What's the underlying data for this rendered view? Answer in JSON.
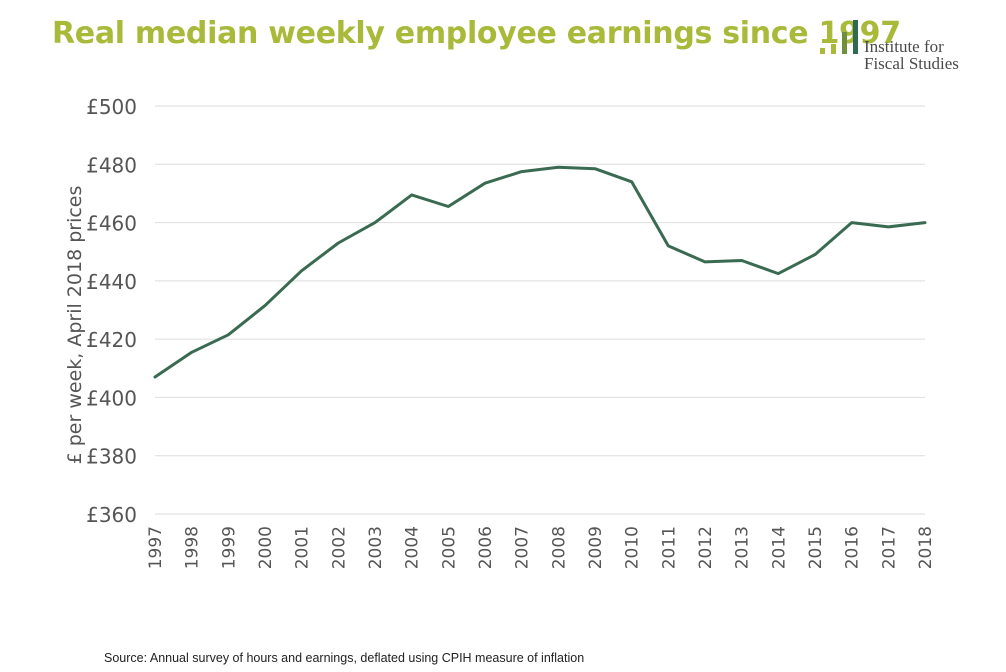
{
  "title": "Real median weekly employee earnings since 1997",
  "logo": {
    "line1": "Institute for",
    "line2": "Fiscal Studies",
    "bar_colors": [
      "#a9b93a",
      "#a9b93a",
      "#6e8f3e",
      "#2f6b4e"
    ]
  },
  "source": "Source: Annual survey of hours and earnings, deflated using CPIH measure of inflation",
  "colors": {
    "title": "#a9b93a",
    "line": "#3a6b52",
    "grid": "#dedede",
    "tick_text": "#555555"
  },
  "chart_data": {
    "type": "line",
    "title": "Real median weekly employee earnings since 1997",
    "xlabel": "",
    "ylabel": "£ per week, April 2018 prices",
    "ylim": [
      360,
      500
    ],
    "y_ticks": [
      360,
      380,
      400,
      420,
      440,
      460,
      480,
      500
    ],
    "y_tick_labels": [
      "£360",
      "£380",
      "£400",
      "£420",
      "£440",
      "£460",
      "£480",
      "£500"
    ],
    "grid": true,
    "x": [
      "1997",
      "1998",
      "1999",
      "2000",
      "2001",
      "2002",
      "2003",
      "2004",
      "2005",
      "2006",
      "2007",
      "2008",
      "2009",
      "2010",
      "2011",
      "2012",
      "2013",
      "2014",
      "2015",
      "2016",
      "2017",
      "2018"
    ],
    "series": [
      {
        "values": [
          407,
          415.5,
          421.5,
          431.5,
          443.5,
          453,
          460,
          469.5,
          465.5,
          473.5,
          477.5,
          479,
          478.5,
          474,
          452,
          446.5,
          447,
          442.5,
          449,
          460,
          458.5,
          460
        ],
        "color": "#3a6b52"
      }
    ]
  }
}
